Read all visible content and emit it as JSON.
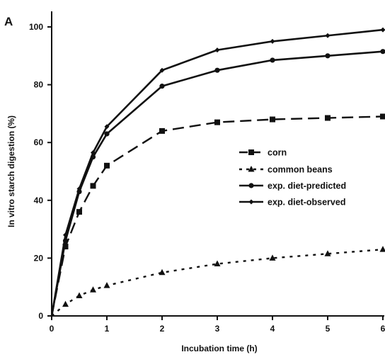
{
  "panel_label": "A",
  "chart_data": {
    "type": "line",
    "title": "",
    "xlabel": "Incubation time (h)",
    "ylabel": "In vitro starch digestion (%)",
    "xlim": [
      0,
      6
    ],
    "ylim": [
      0,
      100
    ],
    "x_ticks": [
      0,
      1,
      2,
      3,
      4,
      5,
      6
    ],
    "y_ticks": [
      0,
      20,
      40,
      60,
      80,
      100
    ],
    "legend_position": "center-right",
    "series": [
      {
        "name": "corn",
        "marker": "square",
        "line_style": "long-dash",
        "color": "#111111",
        "x": [
          0,
          0.25,
          0.5,
          0.75,
          1,
          2,
          3,
          4,
          5,
          6
        ],
        "y": [
          0,
          24,
          36,
          45,
          52,
          64,
          67,
          68,
          68.5,
          69
        ]
      },
      {
        "name": "common beans",
        "marker": "triangle",
        "line_style": "short-dash",
        "color": "#111111",
        "x": [
          0,
          0.25,
          0.5,
          0.75,
          1,
          2,
          3,
          4,
          5,
          6
        ],
        "y": [
          0,
          4,
          7,
          9,
          10.5,
          15,
          18,
          20,
          21.5,
          23
        ]
      },
      {
        "name": "exp. diet-predicted",
        "marker": "circle",
        "line_style": "solid",
        "color": "#111111",
        "x": [
          0,
          0.25,
          0.5,
          0.75,
          1,
          2,
          3,
          4,
          5,
          6
        ],
        "y": [
          0,
          26,
          43,
          55,
          63,
          79.5,
          85,
          88.5,
          90,
          91.5
        ]
      },
      {
        "name": "exp. diet-observed",
        "marker": "diamond",
        "line_style": "solid",
        "color": "#111111",
        "x": [
          0,
          0.25,
          0.5,
          0.75,
          1,
          2,
          3,
          4,
          5,
          6
        ],
        "y": [
          0,
          28,
          44,
          56.5,
          65.5,
          85,
          92,
          95,
          97,
          99
        ]
      }
    ]
  }
}
